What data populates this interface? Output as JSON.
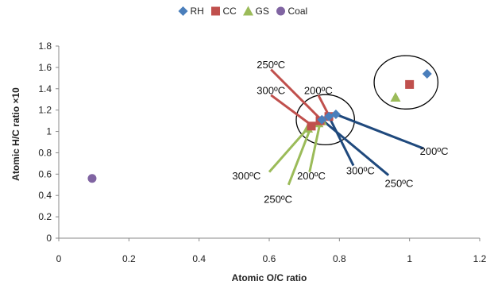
{
  "chart_data": {
    "type": "scatter",
    "xlabel": "Atomic O/C ratio",
    "ylabel": "Atomic H/C ratio ×10",
    "xlim": [
      0,
      1.2
    ],
    "ylim": [
      0,
      1.8
    ],
    "xticks": [
      "0",
      "0.2",
      "0.4",
      "0.6",
      "0.8",
      "1",
      "1.2"
    ],
    "yticks": [
      "0",
      "0.2",
      "0.4",
      "0.6",
      "0.8",
      "1",
      "1.2",
      "1.4",
      "1.6",
      "1.8"
    ],
    "grid": false,
    "legend_position": "top",
    "series": [
      {
        "name": "RH",
        "marker": "diamond",
        "color": "#4a7ebb",
        "points": [
          [
            1.05,
            1.54
          ],
          [
            0.79,
            1.16
          ],
          [
            0.77,
            1.14
          ],
          [
            0.75,
            1.11
          ]
        ]
      },
      {
        "name": "CC",
        "marker": "square",
        "color": "#c0504d",
        "points": [
          [
            1.0,
            1.44
          ],
          [
            0.77,
            1.14
          ],
          [
            0.745,
            1.1
          ],
          [
            0.72,
            1.05
          ]
        ]
      },
      {
        "name": "GS",
        "marker": "triangle",
        "color": "#9bbb59",
        "points": [
          [
            0.96,
            1.32
          ],
          [
            0.75,
            1.1
          ],
          [
            0.74,
            1.08
          ],
          [
            0.71,
            1.03
          ]
        ]
      },
      {
        "name": "Coal",
        "marker": "circle",
        "color": "#8064a2",
        "points": [
          [
            0.095,
            0.56
          ]
        ]
      }
    ],
    "annotations": [
      {
        "text": "250ºC",
        "color": "#c0504d",
        "x": 0.605,
        "y": 1.59,
        "line_from": [
          0.605,
          1.58
        ],
        "line_to": [
          0.745,
          1.12
        ]
      },
      {
        "text": "300ºC",
        "color": "#c0504d",
        "x": 0.605,
        "y": 1.35,
        "line_from": [
          0.605,
          1.34
        ],
        "line_to": [
          0.72,
          1.06
        ]
      },
      {
        "text": "200ºC",
        "color": "#c0504d",
        "x": 0.74,
        "y": 1.35,
        "line_from": [
          0.74,
          1.34
        ],
        "line_to": [
          0.77,
          1.15
        ]
      },
      {
        "text": "200ºC",
        "color": "#1f497d",
        "x": 1.07,
        "y": 0.78,
        "line_from": [
          1.04,
          0.84
        ],
        "line_to": [
          0.79,
          1.16
        ]
      },
      {
        "text": "300ºC",
        "color": "#1f497d",
        "x": 0.86,
        "y": 0.6,
        "line_from": [
          0.84,
          0.68
        ],
        "line_to": [
          0.77,
          1.14
        ]
      },
      {
        "text": "250ºC",
        "color": "#1f497d",
        "x": 0.97,
        "y": 0.48,
        "line_from": [
          0.94,
          0.59
        ],
        "line_to": [
          0.75,
          1.11
        ]
      },
      {
        "text": "300ºC",
        "color": "#9bbb59",
        "x": 0.535,
        "y": 0.55,
        "line_from": [
          0.6,
          0.62
        ],
        "line_to": [
          0.71,
          1.03
        ]
      },
      {
        "text": "250ºC",
        "color": "#9bbb59",
        "x": 0.625,
        "y": 0.33,
        "line_from": [
          0.655,
          0.5
        ],
        "line_to": [
          0.72,
          1.05
        ]
      },
      {
        "text": "200ºC",
        "color": "#9bbb59",
        "x": 0.72,
        "y": 0.55,
        "line_from": [
          0.715,
          0.62
        ],
        "line_to": [
          0.745,
          1.08
        ]
      }
    ],
    "ellipses": [
      {
        "cx": 0.76,
        "cy": 1.11,
        "rx": 0.083,
        "ry": 0.235
      },
      {
        "cx": 0.99,
        "cy": 1.46,
        "rx": 0.091,
        "ry": 0.25
      }
    ]
  }
}
